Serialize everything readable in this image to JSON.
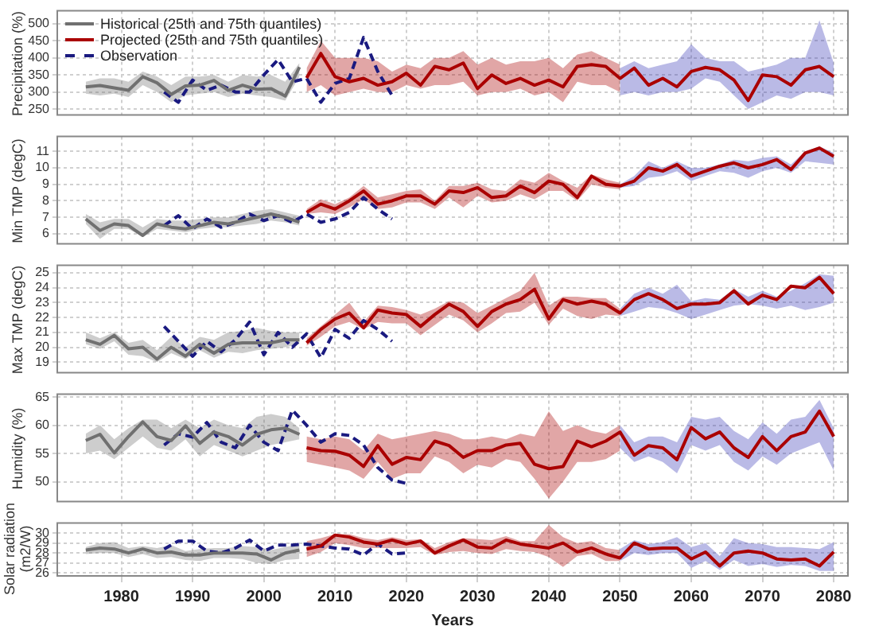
{
  "chart_data": [
    {
      "type": "line",
      "ylabel": "Precipitation (%)",
      "xlim": [
        1971,
        2082
      ],
      "xticks": [
        1980,
        1990,
        2000,
        2010,
        2020,
        2030,
        2040,
        2050,
        2060,
        2070,
        2080
      ],
      "ylim": [
        233,
        538
      ],
      "yticks": [
        250,
        300,
        350,
        400,
        450,
        500
      ],
      "tick_labels": "y",
      "grid": true,
      "legend": "top left",
      "marker": "none",
      "series": [
        {
          "name": "Historical (25th and 75th quantiles)",
          "color": "#707070",
          "x": [
            1975,
            1977,
            1979,
            1981,
            1983,
            1985,
            1987,
            1989,
            1991,
            1993,
            1995,
            1997,
            1999,
            2001,
            2003,
            2005
          ],
          "values": [
            315,
            319,
            312,
            305,
            345,
            327,
            293,
            318,
            320,
            334,
            305,
            320,
            308,
            310,
            288,
            373
          ],
          "lower": [
            295,
            290,
            295,
            285,
            320,
            300,
            270,
            290,
            295,
            300,
            285,
            295,
            290,
            285,
            275,
            345
          ],
          "upper": [
            330,
            340,
            340,
            330,
            360,
            345,
            320,
            345,
            345,
            350,
            330,
            350,
            345,
            350,
            330,
            385
          ]
        },
        {
          "name": "Projected (25th and 75th quantiles)",
          "color": "#aa0000",
          "x": [
            2006,
            2008,
            2010,
            2012,
            2014,
            2016,
            2018,
            2020,
            2022,
            2024,
            2026,
            2028,
            2030,
            2032,
            2034,
            2036,
            2038,
            2040,
            2042,
            2044,
            2046,
            2048,
            2050,
            2052,
            2054,
            2056,
            2058,
            2060,
            2062,
            2064,
            2066,
            2068,
            2070,
            2072,
            2074,
            2076,
            2078,
            2080
          ],
          "values": [
            341,
            413,
            345,
            330,
            340,
            320,
            330,
            355,
            320,
            375,
            365,
            385,
            310,
            350,
            325,
            340,
            320,
            335,
            315,
            375,
            380,
            375,
            340,
            370,
            320,
            340,
            315,
            360,
            372,
            365,
            335,
            275,
            350,
            345,
            320,
            365,
            375,
            345
          ],
          "lower": [
            300,
            320,
            290,
            300,
            310,
            300,
            300,
            320,
            310,
            320,
            320,
            330,
            290,
            300,
            300,
            310,
            290,
            300,
            270,
            330,
            320,
            320,
            300,
            null,
            null,
            null,
            null,
            null,
            null,
            null,
            null,
            null,
            null,
            null,
            null,
            null,
            null,
            null
          ],
          "upper": [
            370,
            450,
            400,
            400,
            400,
            390,
            360,
            380,
            370,
            400,
            400,
            420,
            380,
            400,
            380,
            390,
            390,
            400,
            370,
            410,
            420,
            400,
            380,
            null,
            null,
            null,
            null,
            null,
            null,
            null,
            null,
            null,
            null,
            null,
            null,
            null,
            null,
            null
          ]
        },
        {
          "color": "#3a3ab8",
          "x": [
            2050,
            2052,
            2054,
            2056,
            2058,
            2060,
            2062,
            2064,
            2066,
            2068,
            2070,
            2072,
            2074,
            2076,
            2078,
            2080
          ],
          "values": [
            null,
            null,
            null,
            null,
            null,
            null,
            null,
            null,
            null,
            null,
            null,
            null,
            null,
            null,
            null,
            null
          ],
          "lower": [
            290,
            300,
            290,
            300,
            300,
            310,
            340,
            330,
            290,
            250,
            270,
            290,
            280,
            300,
            300,
            290
          ],
          "upper": [
            370,
            390,
            370,
            380,
            390,
            440,
            400,
            390,
            390,
            360,
            370,
            380,
            400,
            400,
            510,
            385
          ]
        },
        {
          "name": "Observation",
          "color": "#1a1a80",
          "line_style": "dashed",
          "x": [
            1986,
            1988,
            1990,
            1992,
            1994,
            1996,
            1998,
            2000,
            2002,
            2004,
            2006,
            2008,
            2010,
            2012,
            2014,
            2016,
            2018
          ],
          "values": [
            300,
            270,
            335,
            305,
            320,
            300,
            300,
            350,
            395,
            330,
            340,
            270,
            325,
            340,
            460,
            360,
            290
          ]
        }
      ]
    },
    {
      "type": "line",
      "ylabel": "Min TMP (degC)",
      "xlim": [
        1971,
        2082
      ],
      "xticks": [
        1980,
        1990,
        2000,
        2010,
        2020,
        2030,
        2040,
        2050,
        2060,
        2070,
        2080
      ],
      "ylim": [
        5.4,
        11.9
      ],
      "yticks": [
        6,
        7,
        8,
        9,
        10,
        11
      ],
      "tick_labels": "y",
      "grid": true,
      "marker": "none",
      "series": [
        {
          "color": "#707070",
          "x": [
            1975,
            1977,
            1979,
            1981,
            1983,
            1985,
            1987,
            1989,
            1991,
            1993,
            1995,
            1997,
            1999,
            2001,
            2003,
            2005
          ],
          "values": [
            6.9,
            6.2,
            6.6,
            6.5,
            5.9,
            6.6,
            6.4,
            6.3,
            6.5,
            6.7,
            6.6,
            6.8,
            7.0,
            7.2,
            7.0,
            6.7
          ],
          "lower": [
            6.6,
            5.7,
            6.3,
            6.3,
            5.8,
            6.3,
            6.2,
            6.1,
            6.3,
            6.4,
            6.4,
            6.5,
            6.6,
            6.8,
            6.7,
            6.5
          ],
          "upper": [
            7.2,
            6.7,
            6.9,
            6.9,
            6.4,
            6.9,
            6.8,
            6.8,
            6.9,
            7.0,
            7.0,
            7.2,
            7.4,
            7.5,
            7.3,
            7.1
          ]
        },
        {
          "color": "#aa0000",
          "x": [
            2006,
            2008,
            2010,
            2012,
            2014,
            2016,
            2018,
            2020,
            2022,
            2024,
            2026,
            2028,
            2030,
            2032,
            2034,
            2036,
            2038,
            2040,
            2042,
            2044,
            2046,
            2048,
            2050,
            2052,
            2054,
            2056,
            2058,
            2060,
            2062,
            2064,
            2066,
            2068,
            2070,
            2072,
            2074,
            2076,
            2078,
            2080
          ],
          "values": [
            7.3,
            7.8,
            7.5,
            8.0,
            8.6,
            7.8,
            8.0,
            8.3,
            8.3,
            7.8,
            8.6,
            8.5,
            8.8,
            8.2,
            8.3,
            8.9,
            8.5,
            9.2,
            9.0,
            8.2,
            9.5,
            9.0,
            8.9,
            9.2,
            10.0,
            9.8,
            10.2,
            9.5,
            9.8,
            10.1,
            10.3,
            10.0,
            10.2,
            10.5,
            9.9,
            10.9,
            11.2,
            10.7
          ],
          "lower": [
            7.2,
            7.3,
            7.2,
            7.6,
            8.1,
            7.5,
            7.6,
            7.9,
            7.9,
            7.5,
            8.2,
            7.6,
            8.3,
            7.9,
            8.0,
            8.4,
            8.1,
            8.6,
            8.6,
            8.0,
            9.0,
            8.8,
            8.7,
            null,
            null,
            null,
            null,
            null,
            null,
            null,
            null,
            null,
            null,
            null,
            null,
            null,
            null,
            null
          ],
          "upper": [
            7.5,
            8.1,
            7.8,
            8.2,
            8.9,
            8.2,
            8.4,
            8.6,
            8.7,
            8.0,
            8.9,
            8.9,
            9.1,
            8.7,
            8.6,
            9.3,
            9.1,
            9.7,
            9.2,
            8.8,
            9.6,
            9.3,
            9.1,
            null,
            null,
            null,
            null,
            null,
            null,
            null,
            null,
            null,
            null,
            null,
            null,
            null,
            null,
            null
          ]
        },
        {
          "color": "#3a3ab8",
          "x": [
            2050,
            2052,
            2054,
            2056,
            2058,
            2060,
            2062,
            2064,
            2066,
            2068,
            2070,
            2072,
            2074,
            2076,
            2078,
            2080
          ],
          "values": [
            null,
            null,
            null,
            null,
            null,
            null,
            null,
            null,
            null,
            null,
            null,
            null,
            null,
            null,
            null,
            null
          ],
          "lower": [
            8.8,
            8.9,
            9.4,
            9.5,
            9.8,
            9.2,
            9.5,
            9.8,
            9.7,
            9.4,
            9.8,
            10.0,
            9.7,
            10.4,
            10.3,
            10.2
          ],
          "upper": [
            9.0,
            9.5,
            10.4,
            10.0,
            10.4,
            10.0,
            10.0,
            10.2,
            10.5,
            10.4,
            10.6,
            10.7,
            10.2,
            11.0,
            11.3,
            10.9
          ]
        },
        {
          "color": "#1a1a80",
          "line_style": "dashed",
          "x": [
            1986,
            1988,
            1990,
            1992,
            1994,
            1996,
            1998,
            2000,
            2002,
            2004,
            2006,
            2008,
            2010,
            2012,
            2014,
            2016,
            2018
          ],
          "values": [
            6.5,
            7.1,
            6.3,
            6.9,
            6.4,
            6.7,
            7.2,
            6.8,
            7.1,
            6.7,
            7.2,
            6.7,
            6.9,
            7.3,
            8.2,
            7.5,
            6.9
          ]
        }
      ]
    },
    {
      "type": "line",
      "ylabel": "Max TMP (degC)",
      "xlim": [
        1971,
        2082
      ],
      "xticks": [
        1980,
        1990,
        2000,
        2010,
        2020,
        2030,
        2040,
        2050,
        2060,
        2070,
        2080
      ],
      "ylim": [
        18.3,
        25.5
      ],
      "yticks": [
        19,
        20,
        21,
        22,
        23,
        24,
        25
      ],
      "tick_labels": "y",
      "grid": true,
      "marker": "none",
      "series": [
        {
          "color": "#707070",
          "x": [
            1975,
            1977,
            1979,
            1981,
            1983,
            1985,
            1987,
            1989,
            1991,
            1993,
            1995,
            1997,
            1999,
            2001,
            2003,
            2005
          ],
          "values": [
            20.5,
            20.2,
            20.8,
            19.9,
            20.0,
            19.2,
            20.0,
            19.4,
            20.2,
            19.6,
            20.2,
            20.3,
            20.3,
            20.3,
            20.5,
            20.5
          ],
          "lower": [
            20.2,
            19.9,
            20.4,
            19.5,
            19.4,
            19.0,
            19.6,
            19.2,
            19.8,
            19.3,
            19.7,
            19.6,
            19.8,
            19.9,
            20.0,
            20.2
          ],
          "upper": [
            21.0,
            20.6,
            21.0,
            20.3,
            20.5,
            19.8,
            20.7,
            20.0,
            20.7,
            20.5,
            21.0,
            21.1,
            21.3,
            21.1,
            21.0,
            21.0
          ]
        },
        {
          "color": "#aa0000",
          "x": [
            2006,
            2008,
            2010,
            2012,
            2014,
            2016,
            2018,
            2020,
            2022,
            2024,
            2026,
            2028,
            2030,
            2032,
            2034,
            2036,
            2038,
            2040,
            2042,
            2044,
            2046,
            2048,
            2050,
            2052,
            2054,
            2056,
            2058,
            2060,
            2062,
            2064,
            2066,
            2068,
            2070,
            2072,
            2074,
            2076,
            2078,
            2080
          ],
          "values": [
            20.3,
            21.2,
            21.9,
            22.3,
            21.3,
            22.5,
            22.3,
            22.2,
            21.4,
            22.2,
            22.9,
            22.4,
            21.4,
            22.4,
            22.9,
            23.2,
            23.9,
            21.9,
            23.2,
            22.9,
            23.1,
            22.9,
            22.3,
            23.2,
            23.6,
            23.2,
            22.6,
            22.9,
            22.9,
            23.0,
            23.8,
            22.9,
            23.5,
            23.2,
            24.1,
            24.0,
            24.7,
            23.6
          ],
          "lower": [
            20.1,
            20.7,
            21.4,
            21.7,
            21.2,
            21.7,
            21.6,
            21.6,
            20.8,
            21.5,
            22.2,
            21.8,
            21.0,
            21.6,
            22.3,
            22.4,
            23.0,
            21.5,
            22.6,
            22.1,
            21.9,
            22.2,
            22.1,
            null,
            null,
            null,
            null,
            null,
            null,
            null,
            null,
            null,
            null,
            null,
            null,
            null,
            null,
            null
          ],
          "upper": [
            20.6,
            21.4,
            22.2,
            23.0,
            21.7,
            22.8,
            22.7,
            22.5,
            22.2,
            22.6,
            23.1,
            23.0,
            22.3,
            22.8,
            23.3,
            23.8,
            25.0,
            22.8,
            23.4,
            23.4,
            23.3,
            23.3,
            22.6,
            null,
            null,
            null,
            null,
            null,
            null,
            null,
            null,
            null,
            null,
            null,
            null,
            null,
            null,
            null
          ]
        },
        {
          "color": "#3a3ab8",
          "x": [
            2050,
            2052,
            2054,
            2056,
            2058,
            2060,
            2062,
            2064,
            2066,
            2068,
            2070,
            2072,
            2074,
            2076,
            2078,
            2080
          ],
          "values": [
            null,
            null,
            null,
            null,
            null,
            null,
            null,
            null,
            null,
            null,
            null,
            null,
            null,
            null,
            null,
            null
          ],
          "lower": [
            22.1,
            22.4,
            22.7,
            22.6,
            22.3,
            21.9,
            22.2,
            22.5,
            22.8,
            22.9,
            22.8,
            22.6,
            22.8,
            22.5,
            22.7,
            23.0
          ],
          "upper": [
            22.6,
            23.6,
            24.0,
            23.6,
            24.2,
            23.1,
            23.3,
            23.2,
            23.9,
            23.4,
            23.8,
            23.4,
            23.8,
            24.3,
            24.9,
            24.8
          ]
        },
        {
          "color": "#1a1a80",
          "line_style": "dashed",
          "x": [
            1986,
            1988,
            1990,
            1992,
            1994,
            1996,
            1998,
            2000,
            2002,
            2004,
            2006,
            2008,
            2010,
            2012,
            2014,
            2016,
            2018
          ],
          "values": [
            21.4,
            20.4,
            19.4,
            20.4,
            19.7,
            20.5,
            21.7,
            19.5,
            21.0,
            20.0,
            20.9,
            19.3,
            21.2,
            20.6,
            21.8,
            21.2,
            20.4
          ]
        }
      ]
    },
    {
      "type": "line",
      "ylabel": "Humidity (%)",
      "xlim": [
        1971,
        2082
      ],
      "xticks": [
        1980,
        1990,
        2000,
        2010,
        2020,
        2030,
        2040,
        2050,
        2060,
        2070,
        2080
      ],
      "ylim": [
        46.5,
        65.5
      ],
      "yticks": [
        50,
        55,
        60,
        65
      ],
      "tick_labels": "y",
      "grid": true,
      "marker": "none",
      "series": [
        {
          "color": "#707070",
          "x": [
            1975,
            1977,
            1979,
            1981,
            1983,
            1985,
            1987,
            1989,
            1991,
            1993,
            1995,
            1997,
            1999,
            2001,
            2003,
            2005
          ],
          "values": [
            57.3,
            58.4,
            55.1,
            58.0,
            60.6,
            58.0,
            57.3,
            59.9,
            56.8,
            58.8,
            58.0,
            56.5,
            58.4,
            59.2,
            59.5,
            58.4
          ],
          "lower": [
            55.0,
            55.5,
            54.0,
            56.0,
            58.0,
            56.0,
            55.5,
            57.5,
            54.5,
            56.5,
            55.5,
            54.5,
            55.5,
            56.5,
            57.0,
            57.5
          ],
          "upper": [
            58.5,
            60.0,
            57.5,
            59.5,
            61.0,
            61.0,
            59.5,
            61.0,
            59.5,
            61.0,
            60.0,
            59.5,
            61.5,
            62.0,
            61.5,
            59.5
          ]
        },
        {
          "color": "#aa0000",
          "x": [
            2006,
            2008,
            2010,
            2012,
            2014,
            2016,
            2018,
            2020,
            2022,
            2024,
            2026,
            2028,
            2030,
            2032,
            2034,
            2036,
            2038,
            2040,
            2042,
            2044,
            2046,
            2048,
            2050,
            2052,
            2054,
            2056,
            2058,
            2060,
            2062,
            2064,
            2066,
            2068,
            2070,
            2072,
            2074,
            2076,
            2078,
            2080
          ],
          "values": [
            56.0,
            55.5,
            55.4,
            54.7,
            52.7,
            56.4,
            53.1,
            54.3,
            53.9,
            57.2,
            56.4,
            54.3,
            55.5,
            55.5,
            56.5,
            56.8,
            53.1,
            52.3,
            52.7,
            57.2,
            56.2,
            57.2,
            58.8,
            54.7,
            56.4,
            56.0,
            53.9,
            59.6,
            57.6,
            58.8,
            56.0,
            54.3,
            58.0,
            55.5,
            58.0,
            58.8,
            62.5,
            58.0
          ],
          "lower": [
            53.5,
            53.0,
            52.5,
            52.0,
            50.5,
            53.5,
            50.5,
            51.5,
            51.5,
            54.5,
            53.5,
            51.5,
            53.0,
            52.5,
            54.0,
            53.5,
            50.5,
            47.0,
            50.0,
            53.5,
            53.5,
            54.0,
            55.5,
            null,
            null,
            null,
            null,
            null,
            null,
            null,
            null,
            null,
            null,
            null,
            null,
            null,
            null,
            null
          ],
          "upper": [
            58.0,
            57.5,
            58.0,
            57.5,
            55.5,
            58.5,
            57.5,
            58.0,
            58.5,
            59.0,
            58.5,
            57.5,
            57.5,
            58.0,
            57.5,
            58.5,
            58.0,
            62.5,
            59.0,
            60.0,
            59.0,
            58.5,
            60.0,
            null,
            null,
            null,
            null,
            null,
            null,
            null,
            null,
            null,
            null,
            null,
            null,
            null,
            null,
            null
          ]
        },
        {
          "color": "#3a3ab8",
          "x": [
            2050,
            2052,
            2054,
            2056,
            2058,
            2060,
            2062,
            2064,
            2066,
            2068,
            2070,
            2072,
            2074,
            2076,
            2078,
            2080
          ],
          "values": [
            null,
            null,
            null,
            null,
            null,
            null,
            null,
            null,
            null,
            null,
            null,
            null,
            null,
            null,
            null,
            null
          ],
          "lower": [
            56.0,
            53.5,
            54.5,
            53.5,
            51.5,
            56.5,
            55.5,
            56.5,
            53.5,
            52.0,
            54.5,
            53.0,
            55.0,
            56.0,
            57.0,
            52.0
          ],
          "upper": [
            60.0,
            57.0,
            58.0,
            58.0,
            57.0,
            61.5,
            61.0,
            61.5,
            59.0,
            57.5,
            60.5,
            58.5,
            61.0,
            61.5,
            64.5,
            59.5
          ]
        },
        {
          "color": "#1a1a80",
          "line_style": "dashed",
          "x": [
            1986,
            1988,
            1990,
            1992,
            1994,
            1996,
            1998,
            2000,
            2002,
            2004,
            2006,
            2008,
            2010,
            2012,
            2014,
            2016,
            2018,
            2020
          ],
          "values": [
            56.5,
            58.5,
            57.9,
            60.5,
            57.0,
            56.0,
            60.0,
            57.0,
            55.5,
            62.7,
            60.0,
            57.0,
            58.5,
            58.2,
            56.5,
            52.5,
            50.3,
            49.7
          ]
        }
      ]
    },
    {
      "type": "line",
      "ylabel": "Solar radiation (m2/W)",
      "xlabel": "Years",
      "xlim": [
        1971,
        2082
      ],
      "xticks": [
        1980,
        1990,
        2000,
        2010,
        2020,
        2030,
        2040,
        2050,
        2060,
        2070,
        2080
      ],
      "ylim": [
        25.7,
        31.0
      ],
      "yticks": [
        26,
        27,
        28,
        29,
        30
      ],
      "grid": true,
      "marker": "none",
      "series": [
        {
          "color": "#707070",
          "x": [
            1975,
            1977,
            1979,
            1981,
            1983,
            1985,
            1987,
            1989,
            1991,
            1993,
            1995,
            1997,
            1999,
            2001,
            2003,
            2005
          ],
          "values": [
            28.3,
            28.5,
            28.4,
            28.0,
            28.4,
            28.0,
            28.1,
            27.8,
            27.8,
            28.0,
            28.0,
            28.0,
            27.9,
            27.3,
            28.0,
            28.3
          ],
          "lower": [
            27.9,
            28.0,
            28.0,
            27.6,
            27.9,
            27.5,
            27.6,
            27.3,
            27.2,
            27.5,
            27.5,
            27.4,
            27.0,
            26.9,
            27.3,
            27.4
          ],
          "upper": [
            28.6,
            29.0,
            29.1,
            28.5,
            28.7,
            28.5,
            28.8,
            28.2,
            28.4,
            28.5,
            28.5,
            28.7,
            28.6,
            28.3,
            28.6,
            28.9
          ]
        },
        {
          "color": "#aa0000",
          "x": [
            2006,
            2008,
            2010,
            2012,
            2014,
            2016,
            2018,
            2020,
            2022,
            2024,
            2026,
            2028,
            2030,
            2032,
            2034,
            2036,
            2038,
            2040,
            2042,
            2044,
            2046,
            2048,
            2050,
            2052,
            2054,
            2056,
            2058,
            2060,
            2062,
            2064,
            2066,
            2068,
            2070,
            2072,
            2074,
            2076,
            2078,
            2080
          ],
          "values": [
            28.4,
            28.7,
            29.8,
            29.6,
            29.1,
            28.9,
            29.3,
            28.9,
            29.2,
            28.0,
            28.7,
            29.3,
            28.6,
            28.5,
            29.3,
            28.9,
            28.7,
            28.5,
            29.0,
            28.1,
            28.5,
            27.9,
            27.5,
            29.0,
            28.4,
            28.5,
            28.5,
            27.4,
            28.1,
            26.7,
            28.0,
            28.2,
            28.0,
            27.4,
            27.3,
            27.4,
            26.7,
            28.1
          ],
          "lower": [
            27.6,
            28.1,
            29.0,
            28.8,
            28.5,
            28.5,
            28.5,
            28.5,
            28.6,
            27.8,
            28.1,
            28.2,
            28.0,
            27.9,
            28.4,
            28.2,
            28.1,
            27.6,
            26.6,
            27.7,
            27.9,
            27.2,
            27.2,
            null,
            null,
            null,
            null,
            null,
            null,
            null,
            null,
            null,
            null,
            null,
            null,
            null,
            null,
            null
          ],
          "upper": [
            29.2,
            29.5,
            29.9,
            29.9,
            29.5,
            29.3,
            29.6,
            29.3,
            29.4,
            28.5,
            29.1,
            29.5,
            29.4,
            29.3,
            29.7,
            29.2,
            29.2,
            30.8,
            29.6,
            29.0,
            29.2,
            28.5,
            28.3,
            null,
            null,
            null,
            null,
            null,
            null,
            null,
            null,
            null,
            null,
            null,
            null,
            null,
            null,
            null
          ]
        },
        {
          "color": "#3a3ab8",
          "x": [
            2050,
            2052,
            2054,
            2056,
            2058,
            2060,
            2062,
            2064,
            2066,
            2068,
            2070,
            2072,
            2074,
            2076,
            2078,
            2080
          ],
          "values": [
            null,
            null,
            null,
            null,
            null,
            null,
            null,
            null,
            null,
            null,
            null,
            null,
            null,
            null,
            null,
            null
          ],
          "lower": [
            27.2,
            28.0,
            27.8,
            28.0,
            28.0,
            26.5,
            27.2,
            26.3,
            27.3,
            26.7,
            26.9,
            26.6,
            26.8,
            26.7,
            26.2,
            26.2
          ],
          "upper": [
            28.4,
            29.3,
            28.9,
            29.1,
            29.6,
            28.6,
            29.0,
            27.7,
            29.5,
            29.0,
            28.9,
            28.6,
            28.6,
            28.5,
            28.4,
            29.1
          ]
        },
        {
          "color": "#1a1a80",
          "line_style": "dashed",
          "x": [
            1986,
            1988,
            1990,
            1992,
            1994,
            1996,
            1998,
            2000,
            2002,
            2004,
            2006,
            2008,
            2010,
            2012,
            2014,
            2016,
            2018,
            2020
          ],
          "values": [
            28.4,
            29.2,
            29.2,
            28.2,
            28.0,
            28.5,
            29.3,
            28.2,
            28.8,
            28.8,
            28.9,
            28.7,
            28.5,
            28.4,
            27.8,
            28.9,
            27.9,
            28.0
          ]
        }
      ]
    }
  ]
}
